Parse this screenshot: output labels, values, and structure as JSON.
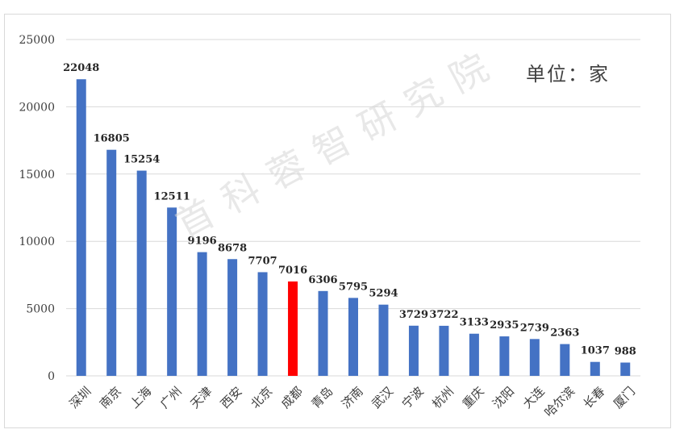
{
  "chart_data": {
    "type": "bar",
    "unit_label": "单位：家",
    "watermark": "首科蓉智研究院",
    "categories": [
      "深圳",
      "南京",
      "上海",
      "广州",
      "天津",
      "西安",
      "北京",
      "成都",
      "青岛",
      "济南",
      "武汉",
      "宁波",
      "杭州",
      "重庆",
      "沈阳",
      "大连",
      "哈尔滨",
      "长春",
      "厦门"
    ],
    "values": [
      22048,
      16805,
      15254,
      12511,
      9196,
      8678,
      7707,
      7016,
      6306,
      5795,
      5294,
      3729,
      3722,
      3133,
      2935,
      2739,
      2363,
      1037,
      988
    ],
    "highlight_category": "成都",
    "colors": {
      "bar": "#4472c4",
      "highlight": "#ff0000",
      "grid": "#d9d9d9"
    },
    "yticks": [
      0,
      5000,
      10000,
      15000,
      20000,
      25000
    ],
    "ylim": [
      0,
      25000
    ],
    "grid": true
  }
}
